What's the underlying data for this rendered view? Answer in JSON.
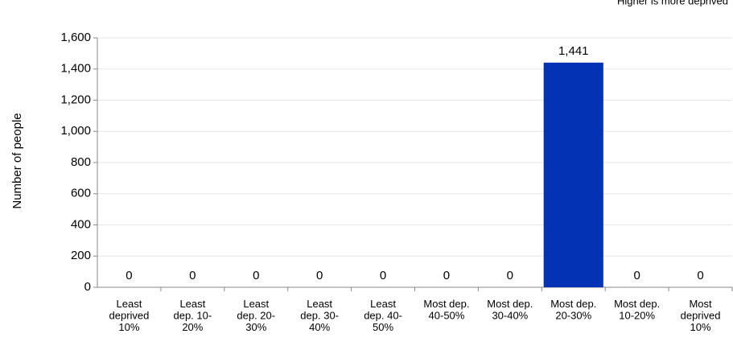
{
  "chart_data": {
    "type": "bar",
    "subtitle": "Higher is more deprived",
    "y_label": "Number of people",
    "categories": [
      [
        "Least",
        "deprived",
        "10%"
      ],
      [
        "Least",
        "dep. 10-",
        "20%"
      ],
      [
        "Least",
        "dep. 20-",
        "30%"
      ],
      [
        "Least",
        "dep. 30-",
        "40%"
      ],
      [
        "Least",
        "dep. 40-",
        "50%"
      ],
      [
        "Most dep.",
        "40-50%"
      ],
      [
        "Most dep.",
        "30-40%"
      ],
      [
        "Most dep.",
        "20-30%"
      ],
      [
        "Most dep.",
        "10-20%"
      ],
      [
        "Most",
        "deprived",
        "10%"
      ]
    ],
    "values": [
      0,
      0,
      0,
      0,
      0,
      0,
      0,
      1441,
      0,
      0
    ],
    "value_labels": [
      "0",
      "0",
      "0",
      "0",
      "0",
      "0",
      "0",
      "1,441",
      "0",
      "0"
    ],
    "color": "#0432b4",
    "ylim": [
      0,
      1600
    ],
    "yticks": [
      0,
      200,
      400,
      600,
      800,
      {
        "value": 1000,
        "label": "1,000"
      },
      {
        "value": 1200,
        "label": "1,200"
      },
      {
        "value": 1400,
        "label": "1,400"
      },
      {
        "value": 1600,
        "label": "1,600"
      }
    ],
    "grid": true
  }
}
